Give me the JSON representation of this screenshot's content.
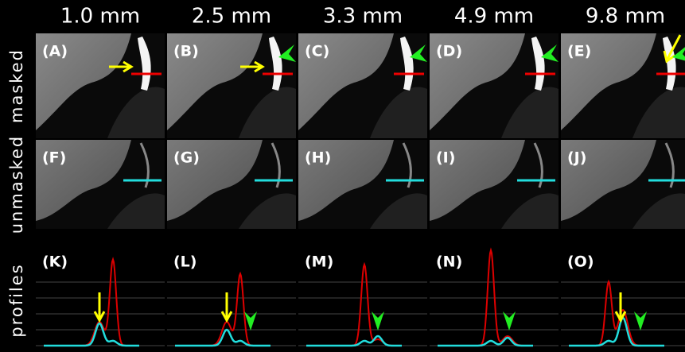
{
  "rows": [
    "masked",
    "unmasked",
    "profiles"
  ],
  "columns": [
    {
      "header": "1.0 mm",
      "panels": [
        "(A)",
        "(F)",
        "(K)"
      ]
    },
    {
      "header": "2.5 mm",
      "panels": [
        "(B)",
        "(G)",
        "(L)"
      ]
    },
    {
      "header": "3.3 mm",
      "panels": [
        "(C)",
        "(H)",
        "(M)"
      ]
    },
    {
      "header": "4.9 mm",
      "panels": [
        "(D)",
        "(I)",
        "(N)"
      ]
    },
    {
      "header": "9.8 mm",
      "panels": [
        "(E)",
        "(J)",
        "(O)"
      ]
    }
  ]
}
